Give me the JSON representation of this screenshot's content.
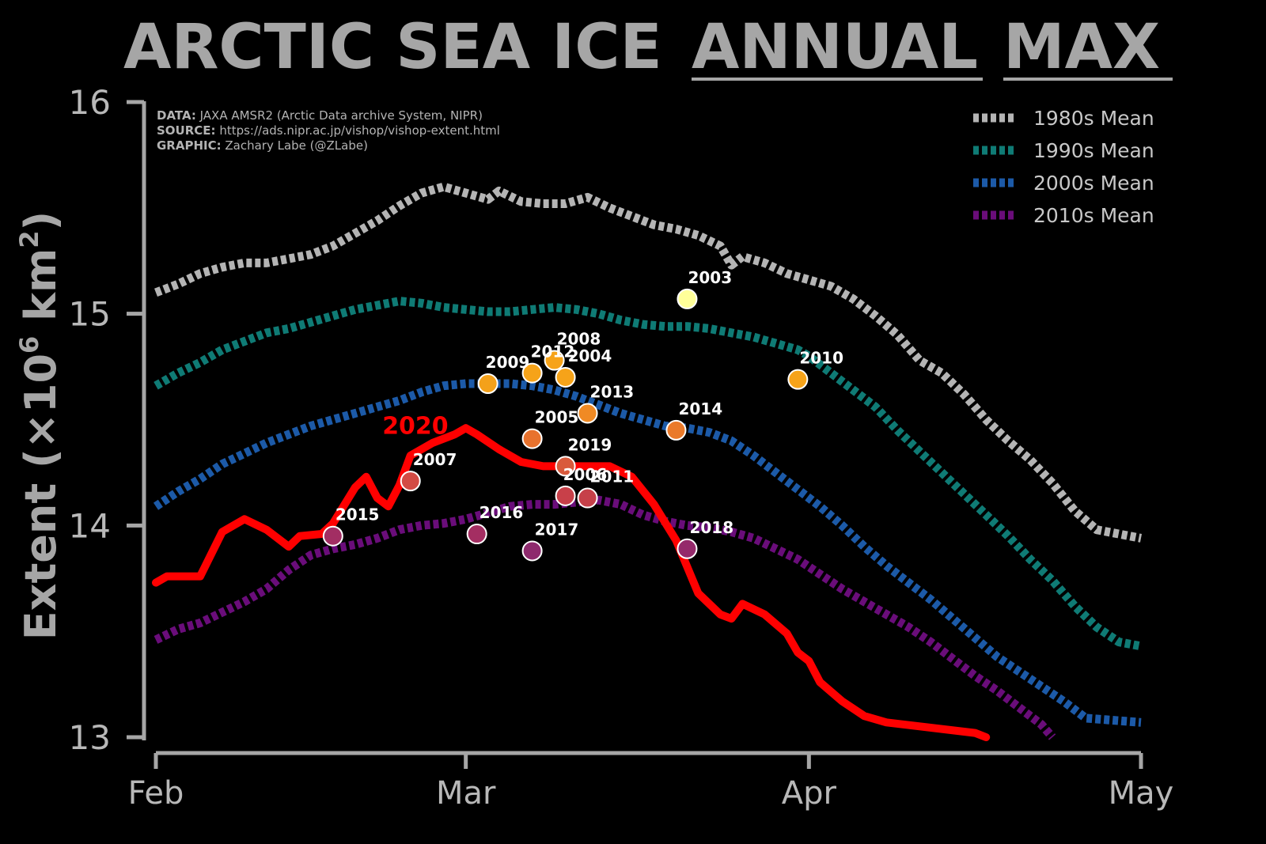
{
  "title": {
    "part1": "ARCTIC SEA ICE",
    "part2": "ANNUAL",
    "part3": "MAX"
  },
  "credits": {
    "data_label": "DATA:",
    "data_text": " JAXA AMSR2 (Arctic Data archive System, NIPR)",
    "source_label": "SOURCE:",
    "source_text": " https://ads.nipr.ac.jp/vishop/vishop-extent.html",
    "graphic_label": "GRAPHIC:",
    "graphic_text": " Zachary Labe (@ZLabe)"
  },
  "chart_data": {
    "type": "line",
    "title": "ARCTIC SEA ICE ANNUAL MAX",
    "ylabel": "Extent (×10⁶ km²)",
    "ylabel_parts": {
      "main": "Extent (×10",
      "sup1": "6",
      "mid": " km",
      "sup2": "2",
      "end": ")"
    },
    "xlabel": "",
    "x_unit": "day of year",
    "xlim": [
      32,
      121
    ],
    "ylim": [
      13,
      16
    ],
    "xticks": [
      {
        "value": 32,
        "label": "Feb"
      },
      {
        "value": 60,
        "label": "Mar"
      },
      {
        "value": 91,
        "label": "Apr"
      },
      {
        "value": 121,
        "label": "May"
      }
    ],
    "yticks": [
      {
        "value": 13,
        "label": "13"
      },
      {
        "value": 14,
        "label": "14"
      },
      {
        "value": 15,
        "label": "15"
      },
      {
        "value": 16,
        "label": "16"
      }
    ],
    "legend_position": "top-right",
    "series": [
      {
        "name": "1980s Mean",
        "color": "#b4b4b4",
        "style": "dotted",
        "points": [
          [
            32,
            15.1
          ],
          [
            34,
            15.14
          ],
          [
            36,
            15.19
          ],
          [
            38,
            15.22
          ],
          [
            40,
            15.24
          ],
          [
            42,
            15.24
          ],
          [
            44,
            15.26
          ],
          [
            46,
            15.28
          ],
          [
            48,
            15.32
          ],
          [
            50,
            15.38
          ],
          [
            52,
            15.44
          ],
          [
            54,
            15.51
          ],
          [
            56,
            15.57
          ],
          [
            58,
            15.6
          ],
          [
            60,
            15.57
          ],
          [
            62,
            15.54
          ],
          [
            63,
            15.58
          ],
          [
            65,
            15.53
          ],
          [
            67,
            15.52
          ],
          [
            69,
            15.52
          ],
          [
            71,
            15.55
          ],
          [
            73,
            15.5
          ],
          [
            75,
            15.46
          ],
          [
            77,
            15.42
          ],
          [
            79,
            15.4
          ],
          [
            81,
            15.37
          ],
          [
            83,
            15.32
          ],
          [
            84,
            15.23
          ],
          [
            85,
            15.27
          ],
          [
            87,
            15.24
          ],
          [
            89,
            15.19
          ],
          [
            91,
            15.16
          ],
          [
            93,
            15.13
          ],
          [
            95,
            15.07
          ],
          [
            97,
            14.99
          ],
          [
            99,
            14.9
          ],
          [
            101,
            14.78
          ],
          [
            103,
            14.72
          ],
          [
            105,
            14.62
          ],
          [
            107,
            14.5
          ],
          [
            109,
            14.4
          ],
          [
            111,
            14.31
          ],
          [
            113,
            14.2
          ],
          [
            115,
            14.07
          ],
          [
            117,
            13.98
          ],
          [
            121,
            13.94
          ]
        ]
      },
      {
        "name": "1990s Mean",
        "color": "#0f7b75",
        "style": "dotted",
        "points": [
          [
            32,
            14.66
          ],
          [
            34,
            14.72
          ],
          [
            36,
            14.77
          ],
          [
            38,
            14.83
          ],
          [
            40,
            14.87
          ],
          [
            42,
            14.91
          ],
          [
            44,
            14.93
          ],
          [
            46,
            14.96
          ],
          [
            48,
            14.99
          ],
          [
            50,
            15.02
          ],
          [
            52,
            15.04
          ],
          [
            54,
            15.06
          ],
          [
            56,
            15.05
          ],
          [
            58,
            15.03
          ],
          [
            60,
            15.02
          ],
          [
            62,
            15.01
          ],
          [
            64,
            15.01
          ],
          [
            66,
            15.02
          ],
          [
            68,
            15.03
          ],
          [
            70,
            15.02
          ],
          [
            72,
            15.0
          ],
          [
            74,
            14.97
          ],
          [
            76,
            14.95
          ],
          [
            78,
            14.94
          ],
          [
            80,
            14.94
          ],
          [
            82,
            14.93
          ],
          [
            84,
            14.91
          ],
          [
            86,
            14.89
          ],
          [
            88,
            14.86
          ],
          [
            90,
            14.83
          ],
          [
            91,
            14.8
          ],
          [
            93,
            14.72
          ],
          [
            95,
            14.64
          ],
          [
            97,
            14.56
          ],
          [
            99,
            14.45
          ],
          [
            101,
            14.35
          ],
          [
            103,
            14.25
          ],
          [
            105,
            14.15
          ],
          [
            107,
            14.05
          ],
          [
            109,
            13.95
          ],
          [
            111,
            13.84
          ],
          [
            113,
            13.74
          ],
          [
            115,
            13.62
          ],
          [
            117,
            13.52
          ],
          [
            119,
            13.45
          ],
          [
            121,
            13.43
          ]
        ]
      },
      {
        "name": "2000s Mean",
        "color": "#1c5aa8",
        "style": "dotted",
        "points": [
          [
            32,
            14.09
          ],
          [
            34,
            14.16
          ],
          [
            36,
            14.22
          ],
          [
            38,
            14.29
          ],
          [
            40,
            14.34
          ],
          [
            42,
            14.39
          ],
          [
            44,
            14.43
          ],
          [
            46,
            14.47
          ],
          [
            48,
            14.5
          ],
          [
            50,
            14.53
          ],
          [
            52,
            14.56
          ],
          [
            54,
            14.59
          ],
          [
            56,
            14.63
          ],
          [
            58,
            14.66
          ],
          [
            60,
            14.67
          ],
          [
            62,
            14.67
          ],
          [
            64,
            14.67
          ],
          [
            66,
            14.66
          ],
          [
            68,
            14.64
          ],
          [
            70,
            14.61
          ],
          [
            72,
            14.57
          ],
          [
            74,
            14.53
          ],
          [
            76,
            14.5
          ],
          [
            78,
            14.47
          ],
          [
            80,
            14.46
          ],
          [
            82,
            14.44
          ],
          [
            84,
            14.4
          ],
          [
            86,
            14.33
          ],
          [
            88,
            14.25
          ],
          [
            90,
            14.17
          ],
          [
            92,
            14.09
          ],
          [
            94,
            14.0
          ],
          [
            96,
            13.9
          ],
          [
            98,
            13.81
          ],
          [
            100,
            13.73
          ],
          [
            102,
            13.65
          ],
          [
            104,
            13.56
          ],
          [
            106,
            13.47
          ],
          [
            108,
            13.38
          ],
          [
            110,
            13.31
          ],
          [
            112,
            13.24
          ],
          [
            114,
            13.17
          ],
          [
            116,
            13.09
          ],
          [
            121,
            13.07
          ]
        ]
      },
      {
        "name": "2010s Mean",
        "color": "#6a0d7a",
        "style": "dotted",
        "points": [
          [
            32,
            13.46
          ],
          [
            34,
            13.51
          ],
          [
            36,
            13.54
          ],
          [
            38,
            13.59
          ],
          [
            40,
            13.64
          ],
          [
            42,
            13.7
          ],
          [
            44,
            13.79
          ],
          [
            46,
            13.86
          ],
          [
            48,
            13.89
          ],
          [
            50,
            13.91
          ],
          [
            52,
            13.94
          ],
          [
            54,
            13.98
          ],
          [
            56,
            14.0
          ],
          [
            58,
            14.01
          ],
          [
            60,
            14.03
          ],
          [
            62,
            14.06
          ],
          [
            64,
            14.09
          ],
          [
            66,
            14.1
          ],
          [
            68,
            14.1
          ],
          [
            70,
            14.11
          ],
          [
            72,
            14.12
          ],
          [
            74,
            14.1
          ],
          [
            76,
            14.05
          ],
          [
            78,
            14.02
          ],
          [
            80,
            14.0
          ],
          [
            82,
            13.99
          ],
          [
            84,
            13.97
          ],
          [
            86,
            13.94
          ],
          [
            88,
            13.89
          ],
          [
            90,
            13.84
          ],
          [
            92,
            13.77
          ],
          [
            94,
            13.7
          ],
          [
            96,
            13.64
          ],
          [
            98,
            13.58
          ],
          [
            100,
            13.52
          ],
          [
            102,
            13.45
          ],
          [
            104,
            13.37
          ],
          [
            106,
            13.29
          ],
          [
            108,
            13.22
          ],
          [
            110,
            13.14
          ],
          [
            112,
            13.06
          ],
          [
            113,
            13.0
          ]
        ]
      },
      {
        "name": "2020",
        "color": "#ff0000",
        "style": "solid",
        "highlight": true,
        "label_at": [
          59,
          14.47
        ],
        "points": [
          [
            32,
            13.73
          ],
          [
            33,
            13.76
          ],
          [
            36,
            13.76
          ],
          [
            38,
            13.97
          ],
          [
            40,
            14.03
          ],
          [
            42,
            13.98
          ],
          [
            44,
            13.9
          ],
          [
            45,
            13.95
          ],
          [
            47,
            13.96
          ],
          [
            48,
            14.01
          ],
          [
            50,
            14.18
          ],
          [
            51,
            14.23
          ],
          [
            52,
            14.13
          ],
          [
            53,
            14.09
          ],
          [
            54,
            14.19
          ],
          [
            55,
            14.33
          ],
          [
            57,
            14.39
          ],
          [
            59,
            14.43
          ],
          [
            60,
            14.46
          ],
          [
            61,
            14.43
          ],
          [
            63,
            14.36
          ],
          [
            65,
            14.3
          ],
          [
            67,
            14.28
          ],
          [
            69,
            14.28
          ],
          [
            71,
            14.28
          ],
          [
            73,
            14.28
          ],
          [
            75,
            14.23
          ],
          [
            77,
            14.1
          ],
          [
            79,
            13.93
          ],
          [
            81,
            13.68
          ],
          [
            83,
            13.58
          ],
          [
            84,
            13.56
          ],
          [
            85,
            13.63
          ],
          [
            87,
            13.58
          ],
          [
            89,
            13.49
          ],
          [
            90,
            13.4
          ],
          [
            91,
            13.36
          ],
          [
            92,
            13.26
          ],
          [
            94,
            13.17
          ],
          [
            96,
            13.1
          ],
          [
            98,
            13.07
          ],
          [
            106,
            13.02
          ],
          [
            107,
            13.0
          ]
        ]
      }
    ],
    "annual_max_points": [
      {
        "year": "2003",
        "x": 80,
        "y": 15.07,
        "color": "#ffff99",
        "label_dx": 1,
        "label_dy": -20
      },
      {
        "year": "2010",
        "x": 90,
        "y": 14.69,
        "color": "#f6a319",
        "label_dx": 2,
        "label_dy": -20
      },
      {
        "year": "2008",
        "x": 68,
        "y": 14.78,
        "color": "#f6a319",
        "label_dx": 3,
        "label_dy": -20
      },
      {
        "year": "2004",
        "x": 69,
        "y": 14.7,
        "color": "#f6a319",
        "label_dx": 3,
        "label_dy": -20
      },
      {
        "year": "2012",
        "x": 66,
        "y": 14.72,
        "color": "#f6a319",
        "label_dx": -2,
        "label_dy": -20
      },
      {
        "year": "2009",
        "x": 62,
        "y": 14.67,
        "color": "#f4a11a",
        "label_dx": -3,
        "label_dy": -20
      },
      {
        "year": "2013",
        "x": 71,
        "y": 14.53,
        "color": "#f08a24",
        "label_dx": 3,
        "label_dy": -20
      },
      {
        "year": "2014",
        "x": 79,
        "y": 14.45,
        "color": "#ea7a2a",
        "label_dx": 3,
        "label_dy": -20
      },
      {
        "year": "2005",
        "x": 66,
        "y": 14.41,
        "color": "#e8722d",
        "label_dx": 3,
        "label_dy": -20
      },
      {
        "year": "2019",
        "x": 69,
        "y": 14.28,
        "color": "#d95a3c",
        "label_dx": 3,
        "label_dy": -20
      },
      {
        "year": "2007",
        "x": 55,
        "y": 14.21,
        "color": "#d34b44",
        "label_dx": 3,
        "label_dy": -20
      },
      {
        "year": "2006",
        "x": 69,
        "y": 14.14,
        "color": "#c84049",
        "label_dx": -3,
        "label_dy": -20
      },
      {
        "year": "2011",
        "x": 71,
        "y": 14.13,
        "color": "#c64049",
        "label_dx": 3,
        "label_dy": -20
      },
      {
        "year": "2016",
        "x": 61,
        "y": 13.96,
        "color": "#a42e62",
        "label_dx": 3,
        "label_dy": -20
      },
      {
        "year": "2015",
        "x": 48,
        "y": 13.95,
        "color": "#a22e63",
        "label_dx": 3,
        "label_dy": -20
      },
      {
        "year": "2018",
        "x": 80,
        "y": 13.89,
        "color": "#952a6b",
        "label_dx": 3,
        "label_dy": -20
      },
      {
        "year": "2017",
        "x": 66,
        "y": 13.88,
        "color": "#8e2a6d",
        "label_dx": 3,
        "label_dy": -20
      }
    ]
  }
}
